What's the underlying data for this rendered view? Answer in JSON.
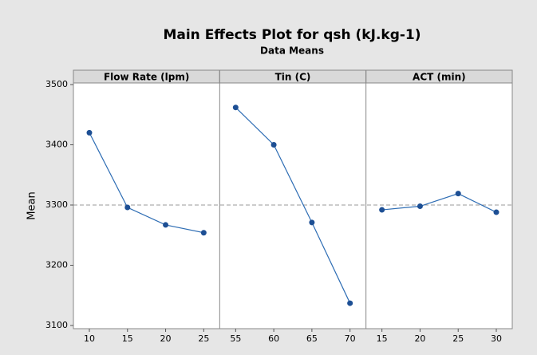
{
  "chart_data": {
    "type": "line",
    "title": "Main Effects Plot for qsh (kJ.kg-1)",
    "subtitle": "Data Means",
    "ylabel": "Mean",
    "ylim": [
      3100,
      3500
    ],
    "yticks": [
      3100,
      3200,
      3300,
      3400,
      3500
    ],
    "reference_line": 3300,
    "color": "#2e6db4",
    "panels": [
      {
        "title": "Flow Rate (lpm)",
        "categories": [
          10,
          15,
          20,
          25
        ],
        "values": [
          3420,
          3296,
          3267,
          3254
        ]
      },
      {
        "title": "Tin (C)",
        "categories": [
          55,
          60,
          65,
          70
        ],
        "values": [
          3462,
          3400,
          3271,
          3137
        ]
      },
      {
        "title": "ACT (min)",
        "categories": [
          15,
          20,
          25,
          30
        ],
        "values": [
          3292,
          3298,
          3319,
          3288
        ]
      }
    ]
  }
}
